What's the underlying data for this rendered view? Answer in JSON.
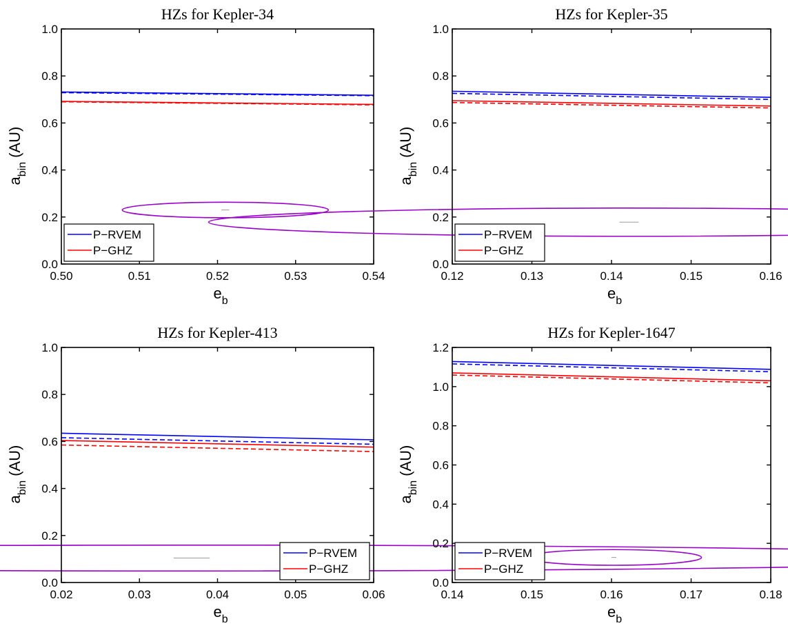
{
  "chart_data": [
    {
      "type": "line",
      "title": "HZs for Kepler-34",
      "xlabel": "e",
      "xlabel_sub": "b",
      "ylabel": "a",
      "ylabel_sub": "bin",
      "ylabel_unit": "(AU)",
      "xlim": [
        0.5,
        0.54
      ],
      "ylim": [
        0.0,
        1.0
      ],
      "xticks": [
        "0.50",
        "0.51",
        "0.52",
        "0.53",
        "0.54"
      ],
      "yticks": [
        "0.0",
        "0.2",
        "0.4",
        "0.6",
        "0.8",
        "1.0"
      ],
      "legend_position": "bottom-left",
      "series": [
        {
          "name": "P−RVEM",
          "color": "#0000ff",
          "style": "solid",
          "x": [
            0.5,
            0.54
          ],
          "y": [
            0.732,
            0.718
          ]
        },
        {
          "name": "P−GHZ",
          "color": "#ff0000",
          "style": "solid",
          "x": [
            0.5,
            0.54
          ],
          "y": [
            0.692,
            0.679
          ]
        },
        {
          "color": "#0000ff",
          "style": "dashed",
          "x": [
            0.5,
            0.54
          ],
          "y": [
            0.729,
            0.716
          ]
        },
        {
          "color": "#ff0000",
          "style": "dashed",
          "x": [
            0.5,
            0.54
          ],
          "y": [
            0.69,
            0.677
          ]
        }
      ],
      "binary_marker": {
        "cx": 0.521,
        "cy": 0.23,
        "rx": 0.0006,
        "ry": 0.033,
        "line_x": [
          0.5205,
          0.5215
        ],
        "line_y": 0.23,
        "ellipse_color": "#9900cc",
        "line_color": "#999999"
      }
    },
    {
      "type": "line",
      "title": "HZs for Kepler-35",
      "xlabel": "e",
      "xlabel_sub": "b",
      "ylabel": "a",
      "ylabel_sub": "bin",
      "ylabel_unit": "(AU)",
      "xlim": [
        0.12,
        0.16
      ],
      "ylim": [
        0.0,
        1.0
      ],
      "xticks": [
        "0.12",
        "0.13",
        "0.14",
        "0.15",
        "0.16"
      ],
      "yticks": [
        "0.0",
        "0.2",
        "0.4",
        "0.6",
        "0.8",
        "1.0"
      ],
      "legend_position": "bottom-left",
      "series": [
        {
          "name": "P−RVEM",
          "color": "#0000ff",
          "style": "solid",
          "x": [
            0.12,
            0.16
          ],
          "y": [
            0.735,
            0.709
          ]
        },
        {
          "name": "P−GHZ",
          "color": "#ff0000",
          "style": "solid",
          "x": [
            0.12,
            0.16
          ],
          "y": [
            0.695,
            0.672
          ]
        },
        {
          "color": "#0000ff",
          "style": "dashed",
          "x": [
            0.12,
            0.16
          ],
          "y": [
            0.726,
            0.7
          ]
        },
        {
          "color": "#ff0000",
          "style": "dashed",
          "x": [
            0.12,
            0.16
          ],
          "y": [
            0.687,
            0.664
          ]
        }
      ],
      "binary_marker": {
        "cx": 0.1422,
        "cy": 0.178,
        "rx": 0.0024,
        "ry": 0.06,
        "line_x": [
          0.141,
          0.1434
        ],
        "line_y": 0.178,
        "ellipse_color": "#9900cc",
        "line_color": "#999999"
      }
    },
    {
      "type": "line",
      "title": "HZs for Kepler-413",
      "xlabel": "e",
      "xlabel_sub": "b",
      "ylabel": "a",
      "ylabel_sub": "bin",
      "ylabel_unit": "(AU)",
      "xlim": [
        0.02,
        0.06
      ],
      "ylim": [
        0.0,
        1.0
      ],
      "xticks": [
        "0.02",
        "0.03",
        "0.04",
        "0.05",
        "0.06"
      ],
      "yticks": [
        "0.0",
        "0.2",
        "0.4",
        "0.6",
        "0.8",
        "1.0"
      ],
      "legend_position": "bottom-right",
      "series": [
        {
          "name": "P−RVEM",
          "color": "#0000ff",
          "style": "solid",
          "x": [
            0.02,
            0.06
          ],
          "y": [
            0.635,
            0.607
          ]
        },
        {
          "name": "P−GHZ",
          "color": "#ff0000",
          "style": "solid",
          "x": [
            0.02,
            0.06
          ],
          "y": [
            0.604,
            0.576
          ]
        },
        {
          "color": "#0000ff",
          "style": "dashed",
          "x": [
            0.02,
            0.06
          ],
          "y": [
            0.616,
            0.588
          ]
        },
        {
          "color": "#ff0000",
          "style": "dashed",
          "x": [
            0.02,
            0.06
          ],
          "y": [
            0.585,
            0.557
          ]
        }
      ],
      "binary_marker": {
        "cx": 0.0367,
        "cy": 0.104,
        "rx": 0.0049,
        "ry": 0.055,
        "line_x": [
          0.0344,
          0.039
        ],
        "line_y": 0.104,
        "ellipse_color": "#9900cc",
        "line_color": "#999999"
      }
    },
    {
      "type": "line",
      "title": "HZs for Kepler-1647",
      "xlabel": "e",
      "xlabel_sub": "b",
      "ylabel": "a",
      "ylabel_sub": "bin",
      "ylabel_unit": "(AU)",
      "xlim": [
        0.14,
        0.18
      ],
      "ylim": [
        0.0,
        1.2
      ],
      "xticks": [
        "0.14",
        "0.15",
        "0.16",
        "0.17",
        "0.18"
      ],
      "yticks": [
        "0.0",
        "0.2",
        "0.4",
        "0.6",
        "0.8",
        "1.0",
        "1.2"
      ],
      "legend_position": "bottom-left",
      "series": [
        {
          "name": "P−RVEM",
          "color": "#0000ff",
          "style": "solid",
          "x": [
            0.14,
            0.18
          ],
          "y": [
            1.128,
            1.088
          ]
        },
        {
          "name": "P−GHZ",
          "color": "#ff0000",
          "style": "solid",
          "x": [
            0.14,
            0.18
          ],
          "y": [
            1.07,
            1.03
          ]
        },
        {
          "color": "#0000ff",
          "style": "dashed",
          "x": [
            0.14,
            0.18
          ],
          "y": [
            1.116,
            1.076
          ]
        },
        {
          "color": "#ff0000",
          "style": "dashed",
          "x": [
            0.14,
            0.18
          ],
          "y": [
            1.059,
            1.019
          ]
        }
      ],
      "binary_marker": {
        "cx": 0.1603,
        "cy": 0.128,
        "rx": 0.0005,
        "ry": 0.04,
        "line_x": [
          0.16,
          0.1606
        ],
        "line_y": 0.128,
        "ellipse_color": "#9900cc",
        "line_color": "#999999"
      }
    }
  ]
}
